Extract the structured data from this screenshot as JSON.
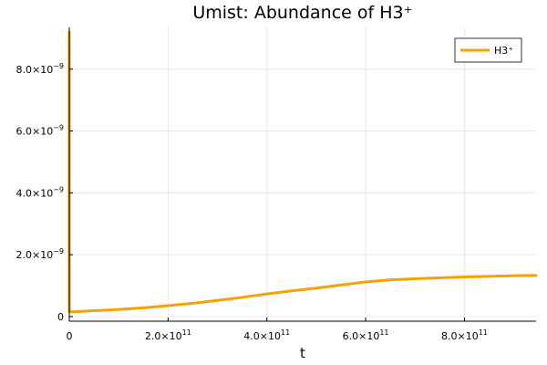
{
  "chart_data": {
    "type": "line",
    "title": "Umist: Abundance of H3⁺",
    "xlabel": "t",
    "ylabel": "",
    "xlim": [
      0,
      945000000000.0
    ],
    "ylim": [
      -1.5e-10,
      9.35e-09
    ],
    "grid": true,
    "legend_position": "top-right",
    "colors": {
      "series": "#f5a100",
      "grid": "#e6e6e6",
      "axis": "#000000"
    },
    "x_ticks": [
      {
        "value": 0,
        "mantissa": "0",
        "exponent": ""
      },
      {
        "value": 200000000000.0,
        "mantissa": "2.0×10",
        "exponent": "11"
      },
      {
        "value": 400000000000.0,
        "mantissa": "4.0×10",
        "exponent": "11"
      },
      {
        "value": 600000000000.0,
        "mantissa": "6.0×10",
        "exponent": "11"
      },
      {
        "value": 800000000000.0,
        "mantissa": "8.0×10",
        "exponent": "11"
      }
    ],
    "y_ticks": [
      {
        "value": 0,
        "mantissa": "0",
        "exponent": ""
      },
      {
        "value": 2e-09,
        "mantissa": "2.0×10",
        "exponent": "−9"
      },
      {
        "value": 4e-09,
        "mantissa": "4.0×10",
        "exponent": "−9"
      },
      {
        "value": 6e-09,
        "mantissa": "6.0×10",
        "exponent": "−9"
      },
      {
        "value": 8e-09,
        "mantissa": "8.0×10",
        "exponent": "−9"
      }
    ],
    "series": [
      {
        "name": "H3⁺",
        "x": [
          0,
          100000000.0,
          1000000000.0,
          50000000000.0,
          100000000000.0,
          150000000000.0,
          200000000000.0,
          250000000000.0,
          300000000000.0,
          350000000000.0,
          400000000000.0,
          450000000000.0,
          500000000000.0,
          550000000000.0,
          600000000000.0,
          650000000000.0,
          700000000000.0,
          750000000000.0,
          800000000000.0,
          850000000000.0,
          900000000000.0,
          945000000000.0
        ],
        "y": [
          9.2e-09,
          1.6e-10,
          1.5e-10,
          1.9e-10,
          2.3e-10,
          2.8e-10,
          3.5e-10,
          4.3e-10,
          5.2e-10,
          6.2e-10,
          7.3e-10,
          8.3e-10,
          9.2e-10,
          1.02e-09,
          1.12e-09,
          1.19e-09,
          1.22e-09,
          1.25e-09,
          1.28e-09,
          1.3e-09,
          1.32e-09,
          1.33e-09
        ]
      }
    ]
  }
}
